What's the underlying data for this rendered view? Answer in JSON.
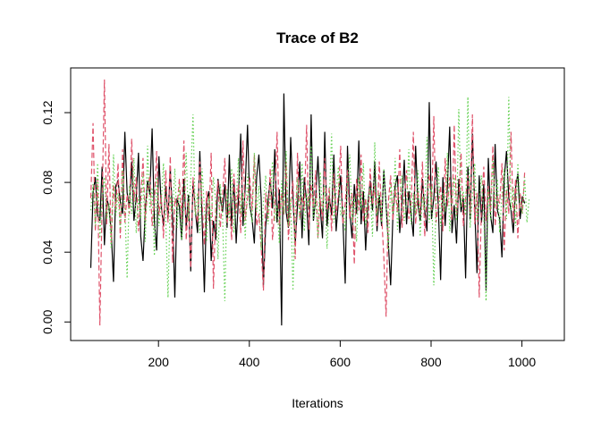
{
  "chart_data": {
    "type": "line",
    "title": "Trace of B2",
    "xlabel": "Iterations",
    "ylabel": "",
    "xlim": [
      50,
      1050
    ],
    "ylim": [
      -0.005,
      0.14
    ],
    "xticks": [
      200,
      400,
      600,
      800,
      1000
    ],
    "xtick_labels": [
      "200",
      "400",
      "600",
      "800",
      "1000"
    ],
    "yticks": [
      0.0,
      0.04,
      0.08,
      0.12
    ],
    "ytick_labels": [
      "0.00",
      "0.04",
      "0.08",
      "0.12"
    ],
    "grid": false,
    "legend": "none",
    "x_start": 51,
    "x_step": 5,
    "series": [
      {
        "color": "#000000",
        "linestyle": "solid",
        "values": [
          0.031,
          0.074,
          0.083,
          0.061,
          0.058,
          0.089,
          0.044,
          0.071,
          0.066,
          0.052,
          0.023,
          0.078,
          0.081,
          0.069,
          0.062,
          0.109,
          0.074,
          0.066,
          0.092,
          0.058,
          0.071,
          0.097,
          0.049,
          0.035,
          0.064,
          0.081,
          0.073,
          0.111,
          0.058,
          0.041,
          0.095,
          0.067,
          0.055,
          0.078,
          0.059,
          0.088,
          0.061,
          0.014,
          0.071,
          0.066,
          0.047,
          0.082,
          0.054,
          0.073,
          0.029,
          0.081,
          0.064,
          0.051,
          0.098,
          0.059,
          0.017,
          0.069,
          0.075,
          0.035,
          0.058,
          0.047,
          0.082,
          0.071,
          0.063,
          0.079,
          0.054,
          0.096,
          0.055,
          0.082,
          0.045,
          0.071,
          0.108,
          0.055,
          0.078,
          0.113,
          0.067,
          0.059,
          0.045,
          0.083,
          0.096,
          0.071,
          0.021,
          0.055,
          0.069,
          0.082,
          0.065,
          0.099,
          0.057,
          0.076,
          -0.002,
          0.131,
          0.063,
          0.054,
          0.106,
          0.071,
          0.045,
          0.067,
          0.092,
          0.048,
          0.083,
          0.069,
          0.044,
          0.119,
          0.058,
          0.071,
          0.095,
          0.066,
          0.048,
          0.109,
          0.055,
          0.072,
          0.061,
          0.096,
          0.052,
          0.069,
          0.084,
          0.058,
          0.022,
          0.101,
          0.064,
          0.048,
          0.079,
          0.062,
          0.104,
          0.056,
          0.075,
          0.041,
          0.068,
          0.081,
          0.064,
          0.092,
          0.052,
          0.073,
          0.055,
          0.087,
          0.067,
          0.045,
          0.021,
          0.061,
          0.078,
          0.084,
          0.051,
          0.068,
          0.093,
          0.056,
          0.075,
          0.062,
          0.049,
          0.101,
          0.068,
          0.058,
          0.082,
          0.064,
          0.052,
          0.126,
          0.059,
          0.071,
          0.092,
          0.066,
          0.024,
          0.083,
          0.055,
          0.078,
          0.112,
          0.051,
          0.067,
          0.045,
          0.082,
          0.063,
          0.071,
          0.025,
          0.089,
          0.059,
          0.108,
          0.066,
          0.028,
          0.084,
          0.057,
          0.079,
          0.018,
          0.094,
          0.061,
          0.051,
          0.102,
          0.064,
          0.059,
          0.037,
          0.082,
          0.098,
          0.071,
          0.064,
          0.051,
          0.077,
          0.085,
          0.059,
          0.072,
          0.068
        ]
      },
      {
        "color": "#df536b",
        "linestyle": "dashed",
        "values": [
          0.071,
          0.114,
          0.052,
          0.082,
          -0.002,
          0.068,
          0.139,
          0.056,
          0.102,
          0.045,
          0.079,
          0.064,
          0.091,
          0.048,
          0.099,
          0.057,
          0.073,
          0.062,
          0.105,
          0.069,
          0.083,
          0.052,
          0.071,
          0.094,
          0.058,
          0.076,
          0.084,
          0.055,
          0.069,
          0.098,
          0.061,
          0.073,
          0.048,
          0.087,
          0.057,
          0.095,
          0.034,
          0.071,
          0.066,
          0.082,
          0.059,
          0.104,
          0.047,
          0.069,
          0.031,
          0.083,
          0.064,
          0.057,
          0.092,
          0.068,
          0.044,
          0.075,
          0.058,
          0.097,
          0.019,
          0.066,
          0.081,
          0.054,
          0.072,
          0.094,
          0.056,
          0.068,
          0.047,
          0.085,
          0.062,
          0.079,
          0.051,
          0.104,
          0.058,
          0.071,
          0.083,
          0.064,
          0.096,
          0.055,
          0.062,
          0.043,
          0.018,
          0.074,
          0.059,
          0.088,
          0.047,
          0.066,
          0.109,
          0.055,
          0.074,
          0.061,
          0.092,
          0.047,
          0.068,
          0.081,
          0.036,
          0.097,
          0.059,
          0.072,
          0.064,
          0.113,
          0.053,
          0.079,
          0.066,
          0.087,
          0.048,
          0.071,
          0.058,
          0.094,
          0.064,
          0.077,
          0.052,
          0.085,
          0.061,
          0.073,
          0.101,
          0.056,
          0.068,
          0.087,
          0.059,
          0.074,
          0.033,
          0.082,
          0.064,
          0.096,
          0.057,
          0.071,
          0.051,
          0.088,
          0.067,
          0.078,
          0.055,
          0.092,
          0.062,
          0.037,
          0.003,
          0.069,
          0.084,
          0.058,
          0.076,
          0.063,
          0.099,
          0.054,
          0.071,
          0.087,
          0.059,
          0.068,
          0.109,
          0.056,
          0.075,
          0.061,
          0.092,
          0.049,
          0.072,
          0.085,
          0.064,
          0.118,
          0.057,
          0.069,
          0.078,
          0.052,
          0.094,
          0.066,
          0.083,
          0.058,
          0.113,
          0.061,
          0.072,
          0.097,
          0.055,
          0.071,
          0.084,
          0.062,
          0.119,
          0.056,
          0.074,
          0.014,
          0.067,
          0.089,
          0.058,
          0.078,
          0.063,
          0.101,
          0.055,
          0.072,
          0.068,
          0.091,
          0.041,
          0.076,
          0.062,
          0.109,
          0.057,
          0.082,
          0.048,
          0.074,
          0.062,
          0.086
        ]
      },
      {
        "color": "#61d04f",
        "linestyle": "dotted",
        "values": [
          0.064,
          0.079,
          0.055,
          0.091,
          0.048,
          0.071,
          0.083,
          0.059,
          0.068,
          0.042,
          0.096,
          0.061,
          0.074,
          0.053,
          0.087,
          0.066,
          0.025,
          0.078,
          0.062,
          0.094,
          0.051,
          0.072,
          0.059,
          0.085,
          0.046,
          0.101,
          0.064,
          0.077,
          0.038,
          0.083,
          0.055,
          0.068,
          0.091,
          0.059,
          0.014,
          0.072,
          0.063,
          0.088,
          0.054,
          0.079,
          0.047,
          0.069,
          0.097,
          0.058,
          0.082,
          0.119,
          0.061,
          0.074,
          0.051,
          0.088,
          0.065,
          0.046,
          0.072,
          0.058,
          0.083,
          0.069,
          0.036,
          0.079,
          0.061,
          0.012,
          0.076,
          0.058,
          0.088,
          0.051,
          0.069,
          0.094,
          0.062,
          0.074,
          0.048,
          0.085,
          0.066,
          0.057,
          0.097,
          0.063,
          0.078,
          0.041,
          0.069,
          0.084,
          0.056,
          0.073,
          0.092,
          0.058,
          0.067,
          0.045,
          0.081,
          0.062,
          0.098,
          0.055,
          0.071,
          0.018,
          0.064,
          0.082,
          0.058,
          0.091,
          0.052,
          0.074,
          0.066,
          0.101,
          0.059,
          0.071,
          0.048,
          0.086,
          0.063,
          0.078,
          0.042,
          0.069,
          0.108,
          0.057,
          0.074,
          0.089,
          0.061,
          0.066,
          0.052,
          0.079,
          0.096,
          0.058,
          0.072,
          0.046,
          0.083,
          0.064,
          0.091,
          0.055,
          0.069,
          0.077,
          0.049,
          0.103,
          0.061,
          0.074,
          0.057,
          0.088,
          0.066,
          0.041,
          0.079,
          0.062,
          0.094,
          0.053,
          0.071,
          0.084,
          0.058,
          0.068,
          0.099,
          0.056,
          0.074,
          0.062,
          0.087,
          0.049,
          0.072,
          0.064,
          0.106,
          0.057,
          0.078,
          0.021,
          0.068,
          0.089,
          0.055,
          0.074,
          0.063,
          0.097,
          0.052,
          0.071,
          0.083,
          0.058,
          0.122,
          0.066,
          0.075,
          0.061,
          0.129,
          0.054,
          0.072,
          0.091,
          0.058,
          0.069,
          0.084,
          0.062,
          0.012,
          0.076,
          0.058,
          0.094,
          0.066,
          0.082,
          0.051,
          0.073,
          0.088,
          0.059,
          0.129,
          0.064,
          0.077,
          0.055,
          0.091,
          0.068,
          0.062,
          0.083,
          0.057,
          0.071
        ]
      }
    ]
  }
}
